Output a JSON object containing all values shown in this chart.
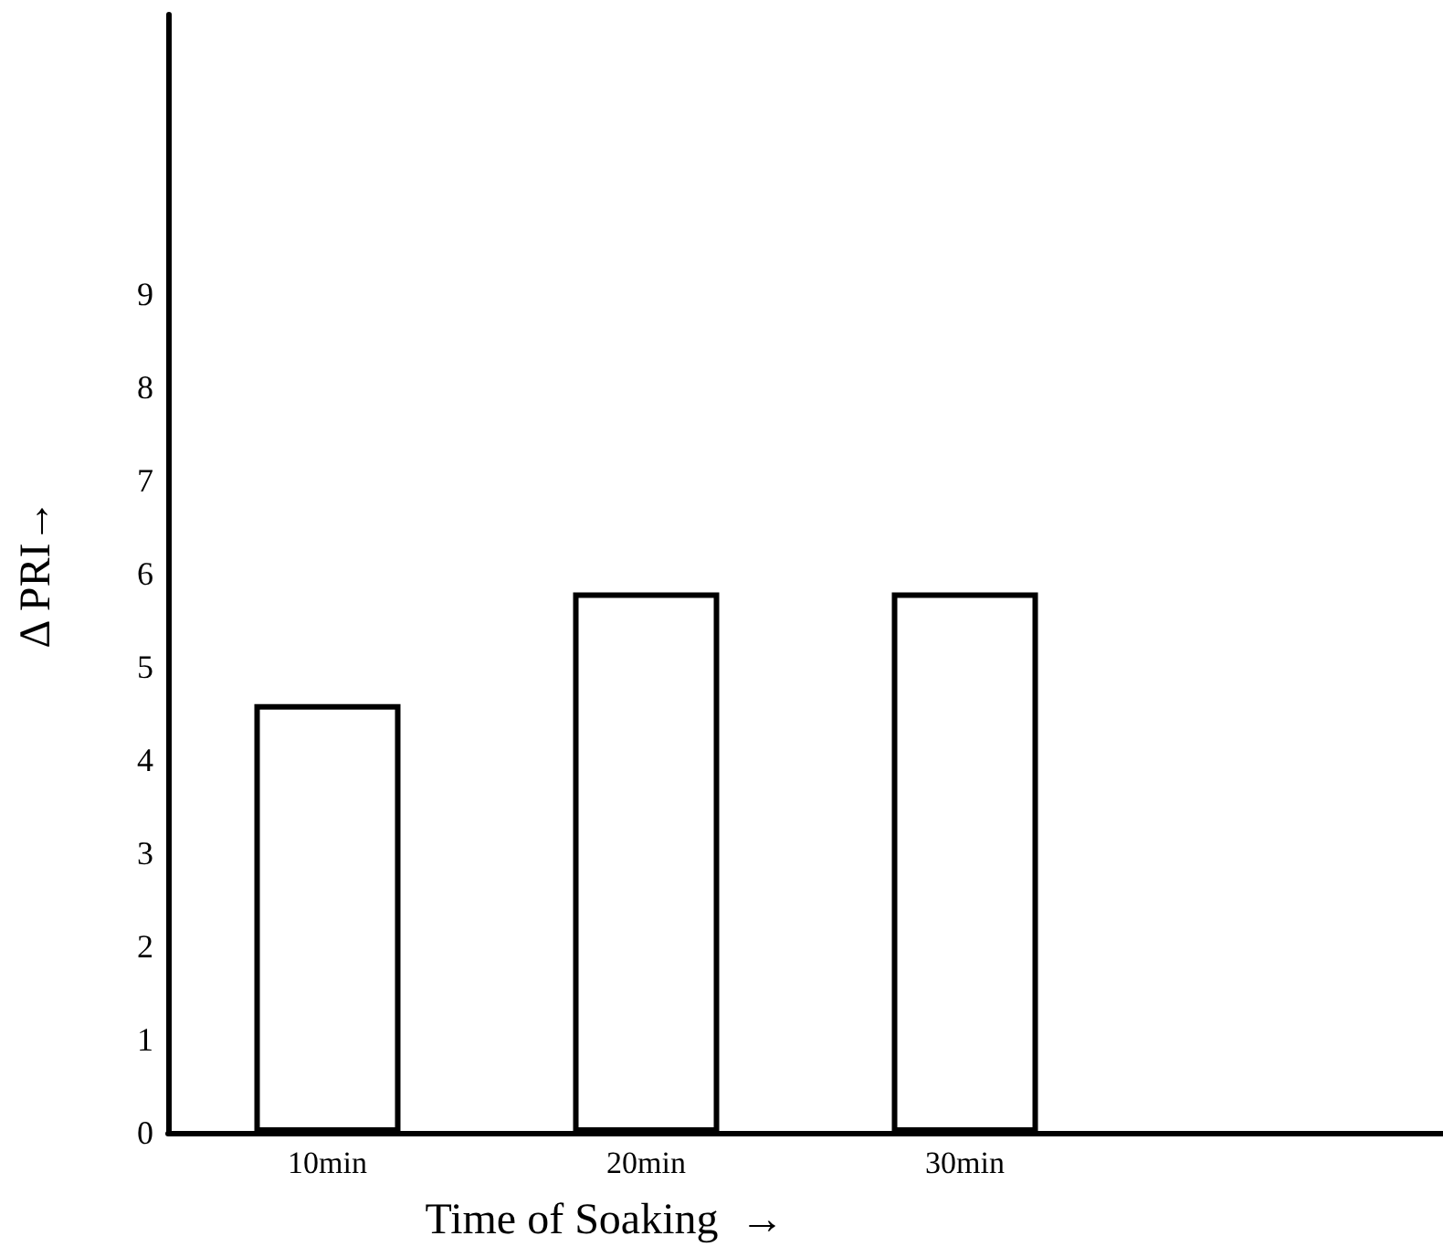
{
  "chart_data": {
    "type": "bar",
    "xlabel": "Time of Soaking  →",
    "ylabel": "Δ PRI→",
    "categories": [
      "10min",
      "20min",
      "30min",
      null
    ],
    "values": [
      4.6,
      5.8,
      5.8,
      null
    ],
    "color": "#ffffff",
    "ylim": [
      0,
      12
    ],
    "yticks": [
      0,
      1,
      2,
      3,
      4,
      5,
      6,
      7,
      8,
      9
    ],
    "grid": false
  }
}
